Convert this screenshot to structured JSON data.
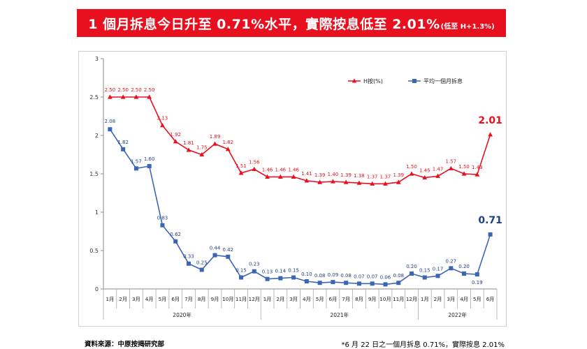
{
  "banner": {
    "title": "1 個月拆息今日升至 0.71%水平，實際按息低至 2.01%",
    "subtitle": "(低至 H+1.3%)"
  },
  "footer": {
    "source": "資料來源：中原按揭研究部",
    "note": "*6 月 22 日之一個月拆息 0.71%，實際按息 2.01%"
  },
  "colors": {
    "h_series": "#e8101e",
    "hibor_series": "#3a66b5",
    "banner": "#e8101e"
  },
  "chart_data": {
    "type": "line",
    "title": "",
    "xlabel": "",
    "ylabel": "",
    "ylim": [
      0,
      3
    ],
    "yticks": [
      "0",
      "0.5",
      "1",
      "1.5",
      "2",
      "2.5",
      "3"
    ],
    "categories": [
      "1月",
      "2月",
      "3月",
      "4月",
      "5月",
      "6月",
      "7月",
      "8月",
      "9月",
      "10月",
      "11月",
      "12月",
      "1月",
      "2月",
      "3月",
      "4月",
      "5月",
      "6月",
      "7月",
      "8月",
      "9月",
      "10月",
      "11月",
      "12月",
      "1月",
      "2月",
      "3月",
      "4月",
      "5月",
      "6月"
    ],
    "year_groups": [
      {
        "label": "2020年",
        "count": 12
      },
      {
        "label": "2021年",
        "count": 12
      },
      {
        "label": "2022年",
        "count": 6
      }
    ],
    "legend": {
      "placement": "top-right"
    },
    "series": [
      {
        "name": "H按(%)",
        "color": "#e8101e",
        "marker": "triangle",
        "values": [
          2.5,
          2.5,
          2.5,
          2.5,
          2.13,
          1.92,
          1.81,
          1.75,
          1.89,
          1.82,
          1.51,
          1.56,
          1.46,
          1.46,
          1.46,
          1.41,
          1.39,
          1.4,
          1.39,
          1.38,
          1.37,
          1.37,
          1.39,
          1.5,
          1.45,
          1.47,
          1.57,
          1.5,
          1.49,
          2.01
        ],
        "labels": [
          "2.50",
          "2.50",
          "2.50",
          "2.50",
          "2.13",
          "1.92",
          "1.81",
          "1.75",
          "1.89",
          "1.82",
          "1.51",
          "1.56",
          "1.46",
          "1.46",
          "1.46",
          "1.41",
          "1.39",
          "1.40",
          "1.39",
          "1.38",
          "1.37",
          "1.37",
          "1.39",
          "1.50",
          "1.45",
          "1.47",
          "1.57",
          "1.50",
          "1.49",
          "2.01"
        ]
      },
      {
        "name": "平均一個月拆息",
        "color": "#3a66b5",
        "marker": "square",
        "values": [
          2.08,
          1.82,
          1.57,
          1.6,
          0.83,
          0.62,
          0.33,
          0.25,
          0.44,
          0.42,
          0.15,
          0.23,
          0.13,
          0.14,
          0.15,
          0.1,
          0.08,
          0.09,
          0.08,
          0.07,
          0.07,
          0.06,
          0.08,
          0.2,
          0.15,
          0.17,
          0.27,
          0.2,
          0.19,
          0.71
        ],
        "labels": [
          "2.08",
          "1.82",
          "1.57",
          "1.60",
          "0.83",
          "0.62",
          "0.33",
          "0.25",
          "0.44",
          "0.42",
          "0.15",
          "0.23",
          "0.13",
          "0.14",
          "0.15",
          "0.10",
          "0.08",
          "0.09",
          "0.08",
          "0.07",
          "0.07",
          "0.06",
          "0.08",
          "0.20",
          "0.15",
          "0.17",
          "0.27",
          "0.20",
          "0.19",
          "0.71"
        ]
      }
    ]
  }
}
